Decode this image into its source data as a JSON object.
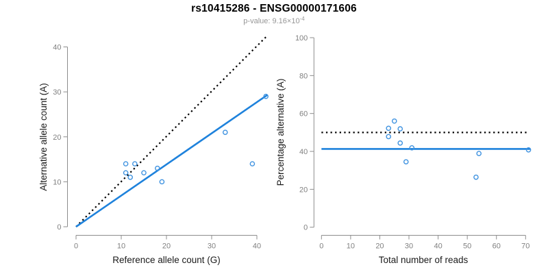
{
  "header": {
    "title": "rs10415286 - ENSG00000171606",
    "subtitle_prefix": "p-value: 9.16×10",
    "subtitle_exponent": "-4"
  },
  "colors": {
    "title": "#000000",
    "subtitle": "#969696",
    "axis": "#8c8c8c",
    "tick_label": "#808080",
    "axis_title": "#1a1a1a",
    "dotted_line": "#000000",
    "fit_line_blue": "#1e82dc",
    "point_blue": "#3e92e0"
  },
  "chart_data": [
    {
      "type": "scatter",
      "name": "allele-counts",
      "title": "",
      "xlabel": "Reference allele count (G)",
      "ylabel": "Alternative allele count (A)",
      "x_ticks": [
        0,
        10,
        20,
        30,
        40
      ],
      "y_ticks": [
        0,
        10,
        20,
        30,
        40
      ],
      "xlim": [
        0,
        42.3
      ],
      "ylim": [
        0,
        42.3
      ],
      "grid": false,
      "points": [
        [
          11,
          14
        ],
        [
          13,
          14
        ],
        [
          11,
          12
        ],
        [
          12,
          11
        ],
        [
          15,
          12
        ],
        [
          18,
          13
        ],
        [
          19,
          10
        ],
        [
          33,
          21
        ],
        [
          39,
          14
        ],
        [
          42,
          29
        ]
      ],
      "lines": [
        {
          "name": "identity-line",
          "style": "dotted",
          "x1": 0,
          "y1": 0,
          "x2": 42.2,
          "y2": 42.4
        },
        {
          "name": "fit-line",
          "style": "solid",
          "x1": 0,
          "y1": 0,
          "x2": 42.3,
          "y2": 29.3
        }
      ]
    },
    {
      "type": "scatter",
      "name": "percentage-vs-reads",
      "title": "",
      "xlabel": "Total number of reads",
      "ylabel": "Percentage alternative (A)",
      "x_ticks": [
        0,
        10,
        20,
        30,
        40,
        50,
        60,
        70
      ],
      "y_ticks": [
        0,
        20,
        40,
        60,
        80,
        100
      ],
      "xlim": [
        0,
        71.7
      ],
      "ylim": [
        0,
        100
      ],
      "grid": false,
      "points": [
        [
          25,
          56
        ],
        [
          23,
          52.2
        ],
        [
          27,
          51.9
        ],
        [
          23,
          47.8
        ],
        [
          27,
          44.4
        ],
        [
          31,
          41.9
        ],
        [
          29,
          34.5
        ],
        [
          54,
          38.9
        ],
        [
          53,
          26.4
        ],
        [
          71,
          40.8
        ]
      ],
      "lines": [
        {
          "name": "fifty-percent-line",
          "style": "dotted",
          "x1": 0,
          "y1": 50,
          "x2": 70.6,
          "y2": 50
        },
        {
          "name": "mean-percentage-line",
          "style": "solid",
          "x1": 0,
          "y1": 41.3,
          "x2": 71.7,
          "y2": 41.3
        }
      ]
    }
  ]
}
